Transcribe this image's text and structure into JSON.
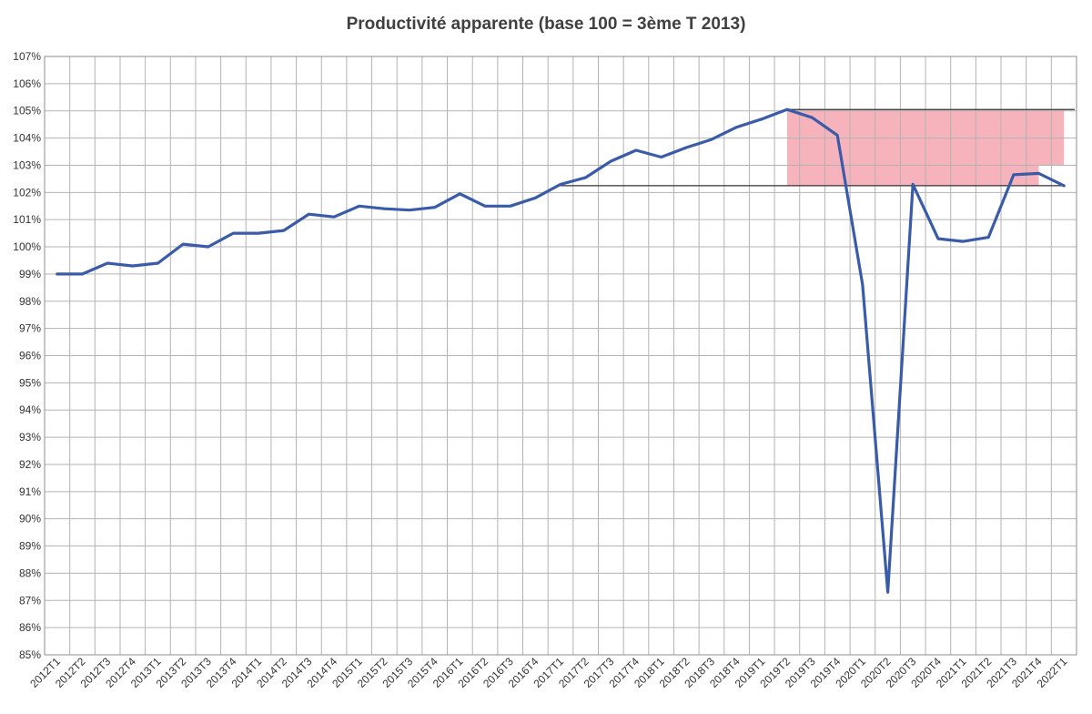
{
  "chart_data": {
    "type": "line",
    "title": "Productivité apparente (base 100 = 3ème T 2013)",
    "xlabel": "",
    "ylabel": "",
    "ylim": [
      85,
      107
    ],
    "y_tick_labels": [
      "85%",
      "86%",
      "87%",
      "88%",
      "89%",
      "90%",
      "91%",
      "92%",
      "93%",
      "94%",
      "95%",
      "96%",
      "97%",
      "98%",
      "99%",
      "100%",
      "101%",
      "102%",
      "103%",
      "104%",
      "105%",
      "106%",
      "107%"
    ],
    "categories": [
      "2012T1",
      "2012T2",
      "2012T3",
      "2012T4",
      "2013T1",
      "2013T2",
      "2013T3",
      "2013T4",
      "2014T1",
      "2014T2",
      "2014T3",
      "2014T4",
      "2015T1",
      "2015T2",
      "2015T3",
      "2015T4",
      "2016T1",
      "2016T2",
      "2016T3",
      "2016T4",
      "2017T1",
      "2017T2",
      "2017T3",
      "2017T4",
      "2018T1",
      "2018T2",
      "2018T3",
      "2018T4",
      "2019T1",
      "2019T2",
      "2019T3",
      "2019T4",
      "2020T1",
      "2020T2",
      "2020T3",
      "2020T4",
      "2021T1",
      "2021T2",
      "2021T3",
      "2021T4",
      "2022T1"
    ],
    "series": [
      {
        "color": "#3a5ba8",
        "values": [
          99.0,
          99.0,
          99.4,
          99.3,
          99.4,
          100.1,
          100.0,
          100.5,
          100.5,
          100.6,
          101.2,
          101.1,
          101.5,
          101.4,
          101.35,
          101.45,
          101.95,
          101.5,
          101.5,
          101.8,
          102.3,
          102.55,
          103.15,
          103.55,
          103.3,
          103.65,
          103.95,
          104.4,
          104.7,
          105.05,
          104.75,
          104.1,
          98.6,
          87.3,
          102.3,
          100.3,
          100.2,
          100.35,
          102.65,
          102.7,
          102.25
        ]
      }
    ],
    "annotations": {
      "upper_reference_line": {
        "y": 105.05,
        "x_start": "2019T2",
        "x_end": "2022T1",
        "color": "#333333"
      },
      "lower_reference_line": {
        "y": 102.25,
        "x_start": "2017T1",
        "x_end": "2022T1",
        "color": "#333333"
      },
      "shaded_band": {
        "color": "#f7b3bb",
        "y_top": 105.05,
        "segments": [
          {
            "x_start": "2019T2",
            "x_end": "2021T4",
            "y_bottom": 102.25
          },
          {
            "x_start": "2021T4",
            "x_end": "2022T1",
            "y_bottom": 103.0
          }
        ]
      }
    },
    "grid": true,
    "legend": "none"
  }
}
